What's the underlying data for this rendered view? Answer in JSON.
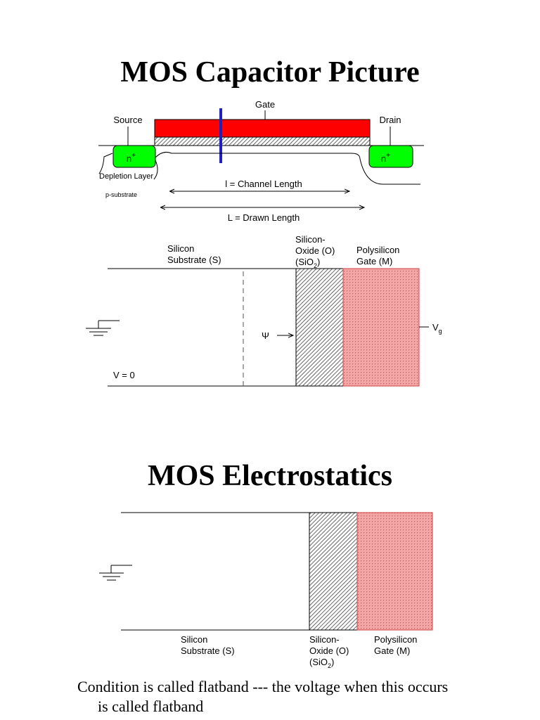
{
  "slide1": {
    "title": "MOS Capacitor Picture",
    "cross_section": {
      "gate": "Gate",
      "source": "Source",
      "drain": "Drain",
      "n_plus": "n",
      "n_plus_sup": "+",
      "depletion_layer": "Depletion Layer",
      "p_substrate": "p-substrate",
      "channel_length": "l = Channel Length",
      "drawn_length": "L = Drawn Length"
    },
    "band_diagram": {
      "silicon_line1": "Silicon",
      "silicon_line2": "Substrate (S)",
      "oxide_line1": "Silicon-",
      "oxide_line2": "Oxide (O)",
      "oxide_line3_prefix": "(SiO",
      "oxide_line3_sub": "2",
      "oxide_line3_suffix": ")",
      "poly_line1": "Polysilicon",
      "poly_line2": "Gate (M)",
      "psi": "Ψ",
      "v_zero": "V = 0",
      "vg_main": "V",
      "vg_sub": "g"
    }
  },
  "slide2": {
    "title": "MOS Electrostatics",
    "band_diagram": {
      "silicon_line1": "Silicon",
      "silicon_line2": "Substrate (S)",
      "oxide_line1": "Silicon-",
      "oxide_line2": "Oxide (O)",
      "oxide_line3_prefix": "(SiO",
      "oxide_line3_sub": "2",
      "oxide_line3_suffix": ")",
      "poly_line1": "Polysilicon",
      "poly_line2": "Gate (M)"
    },
    "caption_line1": "Condition is called flatband --- the voltage when this occurs",
    "caption_line2": "is called flatband"
  },
  "colors": {
    "gate_red": "#ff0000",
    "n_plus_green": "#00ff00",
    "gate_line_blue": "#2020c0",
    "poly_pink": "#f2a0a0",
    "poly_dot": "#c85a5a"
  }
}
